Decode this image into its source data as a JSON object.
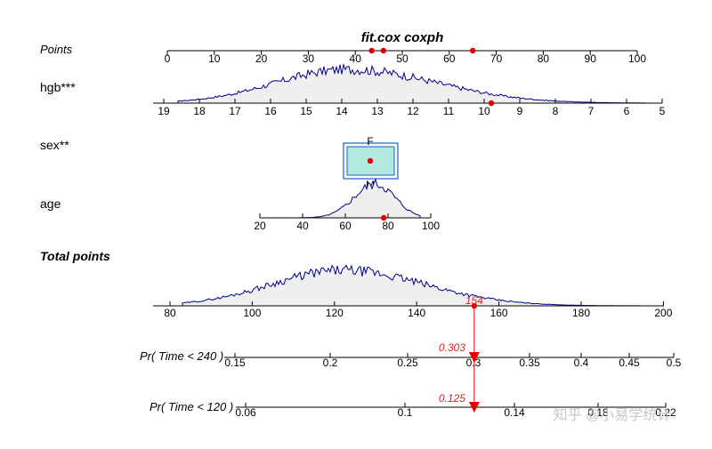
{
  "chart_data": {
    "type": "nomogram",
    "title": "fit.cox coxph",
    "rows": [
      {
        "id": "points",
        "label": "Points",
        "style": "italic",
        "ticks": [
          0,
          10,
          20,
          30,
          40,
          50,
          60,
          70,
          80,
          90,
          100
        ],
        "markers": [
          43.5,
          46,
          65
        ]
      },
      {
        "id": "hgb",
        "label": "hgb***",
        "style": "normal",
        "ticks": [
          19,
          18,
          17,
          16,
          15,
          14,
          13,
          12,
          11,
          10,
          9,
          8,
          7,
          6,
          5
        ],
        "range": [
          19,
          5
        ],
        "density": "approx-normal",
        "density_peak": 13.5,
        "marker_value": 9.8
      },
      {
        "id": "sex",
        "label": "sex**",
        "style": "normal",
        "categories": [
          "F",
          "M"
        ],
        "marker_value": "F"
      },
      {
        "id": "age",
        "label": "age",
        "style": "normal",
        "ticks": [
          20,
          40,
          60,
          80,
          100
        ],
        "range": [
          20,
          100
        ],
        "density": "approx-normal",
        "density_peak": 72,
        "marker_value": 78
      },
      {
        "id": "total",
        "label": "Total points",
        "style": "bold-italic",
        "ticks": [
          80,
          100,
          120,
          140,
          160,
          180,
          200
        ],
        "range": [
          77,
          200
        ],
        "density": "approx-normal",
        "density_peak": 123,
        "marker_value": 154,
        "marker_label": "154"
      },
      {
        "id": "pr240",
        "label": "Pr( Time < 240 )",
        "style": "italic",
        "ticks": [
          "0.15",
          "0.2",
          "0.25",
          "0.3",
          "0.35",
          "0.4",
          "0.45",
          "0.5"
        ],
        "marker_value": 0.303,
        "marker_label": "0.303"
      },
      {
        "id": "pr120",
        "label": "Pr( Time < 120 )",
        "style": "italic",
        "ticks": [
          "0.06",
          "0.1",
          "0.14",
          "0.18",
          "0.22"
        ],
        "marker_value": 0.125,
        "marker_label": "0.125"
      }
    ]
  },
  "watermark": "知乎 @小易学统计",
  "colors": {
    "density_line": "#00008b",
    "density_fill": "#efefef",
    "marker": "#e00000",
    "box_fill": "#b2e8e0",
    "box_border": "#1f5fbf"
  }
}
